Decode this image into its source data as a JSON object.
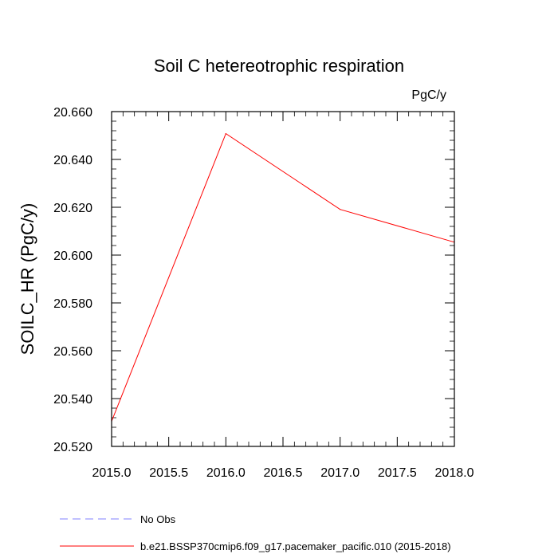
{
  "chart_data": {
    "type": "line",
    "title": "Soil C hetereotrophic respiration",
    "units_label": "PgC/y",
    "ylabel": "SOILC_HR  (PgC/y)",
    "xlabel": "",
    "xlim": [
      2015.0,
      2018.0
    ],
    "ylim": [
      20.52,
      20.66
    ],
    "x_ticks": [
      "2015.0",
      "2015.5",
      "2016.0",
      "2016.5",
      "2017.0",
      "2017.5",
      "2018.0"
    ],
    "y_ticks": [
      "20.520",
      "20.540",
      "20.560",
      "20.580",
      "20.600",
      "20.620",
      "20.640",
      "20.660"
    ],
    "grid": false,
    "legend_placement": "bottom",
    "series": [
      {
        "name": "No Obs",
        "color": "#8080ff",
        "dashed": true,
        "x": [],
        "y": []
      },
      {
        "name": "b.e21.BSSP370cmip6.f09_g17.pacemaker_pacific.010 (2015-2018)",
        "color": "#ff0000",
        "dashed": false,
        "x": [
          2015.0,
          2016.0,
          2017.0,
          2018.0
        ],
        "y": [
          20.5305,
          20.6508,
          20.6191,
          20.6054
        ]
      }
    ]
  }
}
